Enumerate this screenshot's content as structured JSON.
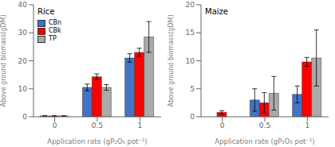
{
  "chart_data": [
    {
      "type": "bar",
      "title": "Rice",
      "categories": [
        "0",
        "0.5",
        "1"
      ],
      "series": [
        {
          "name": "CBn",
          "color": "#4472C4",
          "values": [
            0.3,
            10.5,
            21.0
          ],
          "errors": [
            0.1,
            1.2,
            1.5
          ]
        },
        {
          "name": "CBk",
          "color": "#FF0000",
          "values": [
            0.3,
            14.3,
            23.0
          ],
          "errors": [
            0.1,
            1.0,
            1.5
          ]
        },
        {
          "name": "TP",
          "color": "#AAAAAA",
          "values": [
            0.3,
            10.5,
            28.5
          ],
          "errors": [
            0.1,
            1.0,
            5.5
          ]
        }
      ],
      "xlabel": "Application rate (gP₂O₅ pot⁻¹)",
      "ylabel": "Above ground biomass(gDM)",
      "ylim": [
        0,
        40
      ],
      "yticks": [
        0,
        10,
        20,
        30,
        40
      ],
      "legend": "upper left"
    },
    {
      "type": "bar",
      "title": "Maize",
      "categories": [
        "0",
        "0.5",
        "1"
      ],
      "series": [
        {
          "name": "CBn",
          "color": "#4472C4",
          "values": [
            0.0,
            3.0,
            4.0
          ],
          "errors": [
            0.0,
            2.0,
            1.5
          ]
        },
        {
          "name": "CBk",
          "color": "#FF0000",
          "values": [
            0.8,
            2.5,
            9.8
          ],
          "errors": [
            0.3,
            1.8,
            0.8
          ]
        },
        {
          "name": "TP",
          "color": "#AAAAAA",
          "values": [
            0.0,
            4.2,
            10.5
          ],
          "errors": [
            0.0,
            3.0,
            5.0
          ]
        }
      ],
      "xlabel": "Application rate (gP₂O₅ pot⁻¹)",
      "ylabel": "Above ground biomass(gDM)",
      "ylim": [
        0,
        20
      ],
      "yticks": [
        0,
        5,
        10,
        15,
        20
      ]
    }
  ]
}
